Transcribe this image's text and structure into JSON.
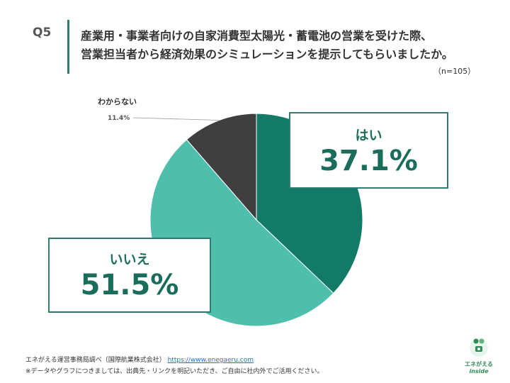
{
  "header": {
    "question_label": "Q5",
    "title_line1": "産業用・事業者向けの自家消費型太陽光・蓄電池の営業を受けた際、",
    "title_line2": "営業担当者から経済効果のシミュレーションを提示してもらいましたか。",
    "sample_size": "（n=105）"
  },
  "chart_data": {
    "type": "pie",
    "slices": [
      {
        "label": "はい",
        "value": 37.1,
        "display": "37.1%",
        "color": "#137a68"
      },
      {
        "label": "いいえ",
        "value": 51.5,
        "display": "51.5%",
        "color": "#4fbfad"
      },
      {
        "label": "わからない",
        "value": 11.4,
        "display": "11.4%",
        "color": "#3f3f3f"
      }
    ],
    "start_angle_deg": 0,
    "direction": "clockwise"
  },
  "footer": {
    "source_text": "エネがえる運営事務局調べ（国際航業株式会社）",
    "source_url": "https://www.enegaeru.com",
    "note": "※データやグラフにつきましては、出典先・リンクを明記いただき、ご自由に社内外でご活用ください。"
  },
  "logo": {
    "line1": "エネがえる",
    "line2": "inside",
    "accent_color": "#2e8b57"
  }
}
